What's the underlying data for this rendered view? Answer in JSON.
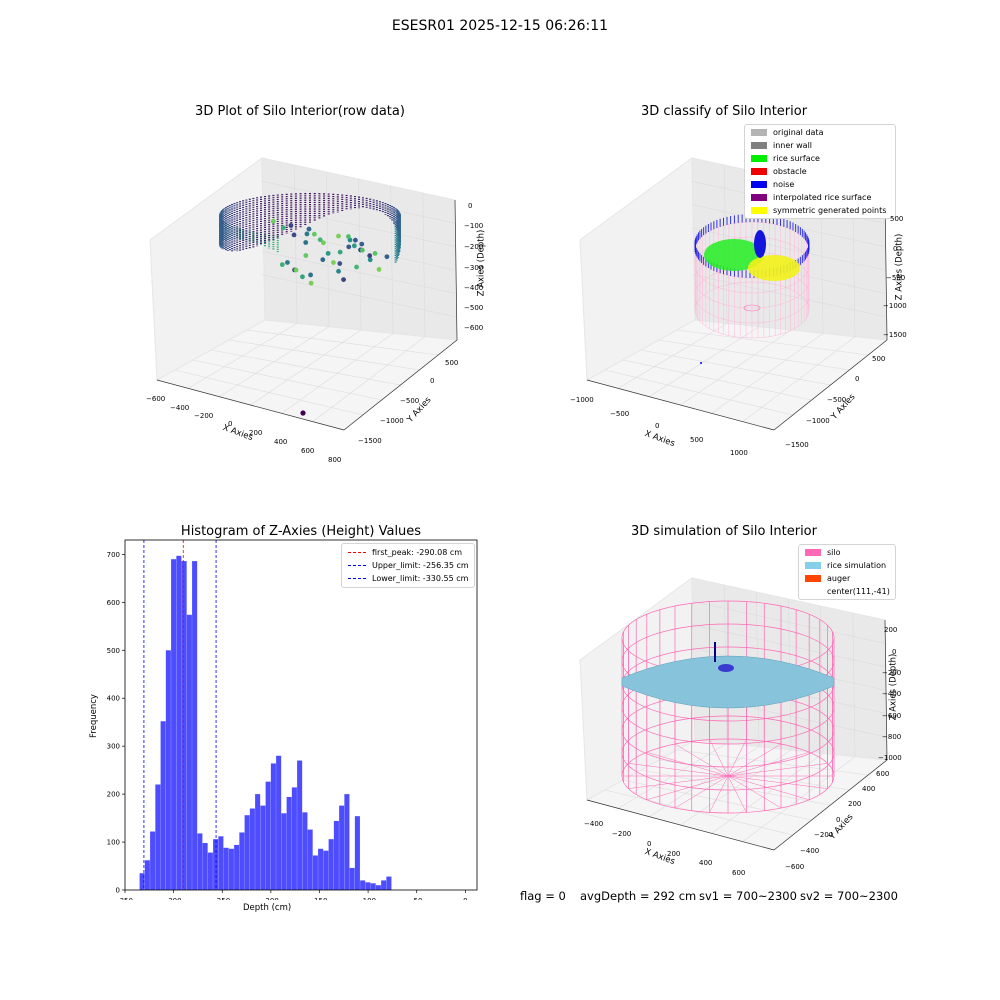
{
  "suptitle": "ESESR01 2025-12-15 06:26:11",
  "footer": {
    "flag": "flag = 0",
    "avg_depth": "avgDepth = 292 cm",
    "sv1": "sv1 = 700~2300",
    "sv2": "sv2 = 700~2300"
  },
  "chart_data": [
    {
      "type": "scatter",
      "title": "3D Plot of Silo Interior(row data)",
      "xlabel": "X Axies",
      "ylabel": "Y Axies",
      "zlabel": "Z Axies (Depth)",
      "x_ticks": [
        "−600",
        "−400",
        "−200",
        "0",
        "200",
        "400",
        "600",
        "800"
      ],
      "y_ticks": [
        "500",
        "0",
        "−500",
        "−1000",
        "−1500"
      ],
      "z_ticks": [
        "0",
        "−100",
        "−200",
        "−300",
        "−400",
        "−500",
        "−600"
      ],
      "colormap": "viridis"
    },
    {
      "type": "scatter",
      "title": "3D classify of Silo Interior",
      "xlabel": "X Axies",
      "ylabel": "Y Axies",
      "zlabel": "Z Axies (Depth)",
      "x_ticks": [
        "−1000",
        "−500",
        "0",
        "500",
        "1000"
      ],
      "y_ticks": [
        "500",
        "0",
        "−500",
        "−1000",
        "−1500"
      ],
      "z_ticks": [
        "500",
        "0",
        "−500",
        "−1000",
        "−1500"
      ],
      "legend": [
        {
          "label": "original data",
          "color": "#b3b3b3"
        },
        {
          "label": "inner wall",
          "color": "#7f7f7f"
        },
        {
          "label": "rice surface",
          "color": "#00ee00"
        },
        {
          "label": "obstacle",
          "color": "#ee0000"
        },
        {
          "label": "noise",
          "color": "#0000ee"
        },
        {
          "label": "interpolated rice surface",
          "color": "#800080"
        },
        {
          "label": "symmetric generated points",
          "color": "#ffff00"
        }
      ],
      "legend_position": "top-right"
    },
    {
      "type": "bar",
      "title": "Histogram of Z-Axies (Height) Values",
      "xlabel": "Depth (cm)",
      "ylabel": "Frequency",
      "xlim": [
        -350,
        12
      ],
      "ylim": [
        0,
        730
      ],
      "x_ticks": [
        -350,
        -300,
        -250,
        -200,
        -150,
        -100,
        -50,
        0
      ],
      "y_ticks": [
        0,
        100,
        200,
        300,
        400,
        500,
        600,
        700
      ],
      "bar_color": "#4d4dff",
      "bin_start": -335,
      "bin_width": 5.4,
      "values": [
        35,
        62,
        122,
        220,
        352,
        500,
        690,
        697,
        686,
        574,
        686,
        118,
        98,
        78,
        106,
        112,
        88,
        86,
        94,
        120,
        156,
        170,
        200,
        176,
        226,
        264,
        280,
        160,
        194,
        214,
        270,
        162,
        126,
        72,
        86,
        82,
        106,
        144,
        176,
        200,
        46,
        154,
        20,
        16,
        14,
        10,
        20,
        28
      ],
      "vlines": [
        {
          "label": "first_peak: -290.08 cm",
          "x": -290.08,
          "color": "#ff0000"
        },
        {
          "label": "Upper_limit: -256.35 cm",
          "x": -256.35,
          "color": "#0000ff"
        },
        {
          "label": "Lower_limit: -330.55 cm",
          "x": -330.55,
          "color": "#0000ff"
        }
      ],
      "legend_position": "top-right"
    },
    {
      "type": "scatter",
      "title": "3D simulation of Silo Interior",
      "xlabel": "X Axies",
      "ylabel": "Y Axies",
      "zlabel": "Z Axies (Depth)",
      "x_ticks": [
        "−400",
        "−200",
        "0",
        "200",
        "400",
        "600"
      ],
      "y_ticks": [
        "600",
        "400",
        "200",
        "0",
        "−200",
        "−400",
        "−600"
      ],
      "z_ticks": [
        "200",
        "0",
        "−200",
        "−400",
        "−600",
        "−800",
        "−1000"
      ],
      "legend": [
        {
          "label": "silo",
          "color": "#ff69b4"
        },
        {
          "label": "rice simulation",
          "color": "#87ceeb"
        },
        {
          "label": "auger",
          "color": "#ff4500"
        },
        {
          "label": "center(111,-41)",
          "color": ""
        }
      ],
      "legend_position": "top-right"
    }
  ]
}
